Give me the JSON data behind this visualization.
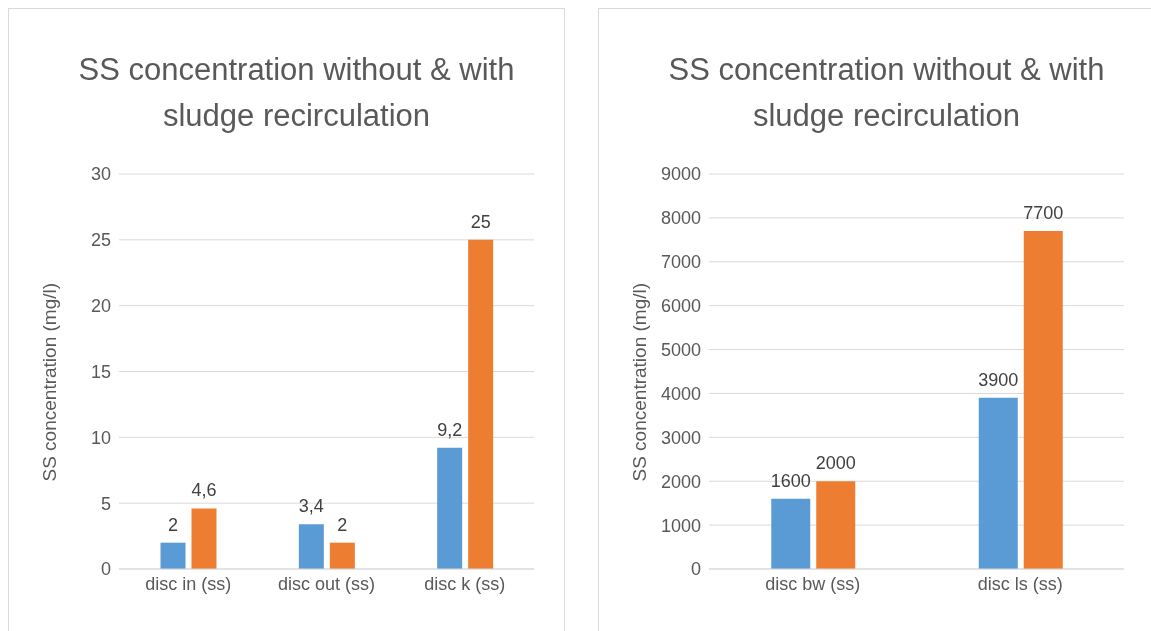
{
  "chart_data": [
    {
      "type": "bar",
      "title": "SS concentration without & with sludge recirculation",
      "ylabel": "SS concentration (mg/l)",
      "categories": [
        "disc in (ss)",
        "disc out (ss)",
        "disc k (ss)"
      ],
      "series": [
        {
          "color": "#5b9bd5",
          "values": [
            2,
            3.4,
            9.2
          ],
          "value_labels": [
            "2",
            "3,4",
            "9,2"
          ]
        },
        {
          "color": "#ed7d31",
          "values": [
            4.6,
            2,
            25
          ],
          "value_labels": [
            "4,6",
            "2",
            "25"
          ]
        }
      ],
      "ylim": [
        0,
        30
      ],
      "yticks": [
        0,
        5,
        10,
        15,
        20,
        25,
        30
      ],
      "grid": "y",
      "legend": false
    },
    {
      "type": "bar",
      "title": "SS concentration without & with sludge recirculation",
      "ylabel": "SS concentration (mg/l)",
      "categories": [
        "disc bw (ss)",
        "disc ls (ss)"
      ],
      "series": [
        {
          "color": "#5b9bd5",
          "values": [
            1600,
            3900
          ],
          "value_labels": [
            "1600",
            "3900"
          ]
        },
        {
          "color": "#ed7d31",
          "values": [
            2000,
            7700
          ],
          "value_labels": [
            "2000",
            "7700"
          ]
        }
      ],
      "ylim": [
        0,
        9000
      ],
      "yticks": [
        0,
        1000,
        2000,
        3000,
        4000,
        5000,
        6000,
        7000,
        8000,
        9000
      ],
      "grid": "y",
      "legend": false
    }
  ]
}
